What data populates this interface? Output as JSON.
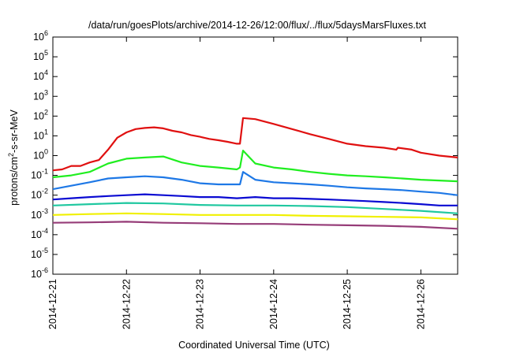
{
  "chart_data": {
    "type": "line",
    "title": "/data/run/goesPlots/archive/2014-12-26/12:00/flux/../flux/5daysMarsFluxes.txt",
    "xlabel": "Coordinated Universal Time (UTC)",
    "ylabel": "protons/cm²-s-sr-MeV",
    "ylabel_parts": {
      "pre": "protons/cm",
      "sup": "2",
      "post": "-s-sr-MeV"
    },
    "y_scale": "log",
    "ylim": [
      1e-06,
      1000000.0
    ],
    "y_ticks": [
      {
        "value": 1e-06,
        "base": "10",
        "exp": "-6"
      },
      {
        "value": 1e-05,
        "base": "10",
        "exp": "-5"
      },
      {
        "value": 0.0001,
        "base": "10",
        "exp": "-4"
      },
      {
        "value": 0.001,
        "base": "10",
        "exp": "-3"
      },
      {
        "value": 0.01,
        "base": "10",
        "exp": "-2"
      },
      {
        "value": 0.1,
        "base": "10",
        "exp": "-1"
      },
      {
        "value": 1,
        "base": "10",
        "exp": "0"
      },
      {
        "value": 10.0,
        "base": "10",
        "exp": "1"
      },
      {
        "value": 100.0,
        "base": "10",
        "exp": "2"
      },
      {
        "value": 1000.0,
        "base": "10",
        "exp": "3"
      },
      {
        "value": 10000.0,
        "base": "10",
        "exp": "4"
      },
      {
        "value": 100000.0,
        "base": "10",
        "exp": "5"
      },
      {
        "value": 1000000.0,
        "base": "10",
        "exp": "6"
      }
    ],
    "xlim": [
      "2014-12-21",
      "2014-12-26T12:00"
    ],
    "x_ticks": [
      "2014-12-21",
      "2014-12-22",
      "2014-12-23",
      "2014-12-24",
      "2014-12-25",
      "2014-12-26"
    ],
    "grid": false,
    "legend": "none",
    "series": [
      {
        "color": "#e01010",
        "points": [
          [
            "2014-12-21T00:00",
            0.18
          ],
          [
            "2014-12-21T03:00",
            0.2
          ],
          [
            "2014-12-21T06:00",
            0.3
          ],
          [
            "2014-12-21T09:00",
            0.3
          ],
          [
            "2014-12-21T12:00",
            0.45
          ],
          [
            "2014-12-21T15:00",
            0.6
          ],
          [
            "2014-12-21T18:00",
            2.0
          ],
          [
            "2014-12-21T21:00",
            8
          ],
          [
            "2014-12-22T00:00",
            15
          ],
          [
            "2014-12-22T03:00",
            22
          ],
          [
            "2014-12-22T06:00",
            25
          ],
          [
            "2014-12-22T09:00",
            27
          ],
          [
            "2014-12-22T12:00",
            24
          ],
          [
            "2014-12-22T15:00",
            18
          ],
          [
            "2014-12-22T18:00",
            15
          ],
          [
            "2014-12-22T21:00",
            11
          ],
          [
            "2014-12-23T00:00",
            9
          ],
          [
            "2014-12-23T03:00",
            7
          ],
          [
            "2014-12-23T06:00",
            6
          ],
          [
            "2014-12-23T09:00",
            5
          ],
          [
            "2014-12-23T12:00",
            4
          ],
          [
            "2014-12-23T13:00",
            4
          ],
          [
            "2014-12-23T14:00",
            80
          ],
          [
            "2014-12-23T18:00",
            70
          ],
          [
            "2014-12-24T00:00",
            40
          ],
          [
            "2014-12-24T06:00",
            22
          ],
          [
            "2014-12-24T12:00",
            12
          ],
          [
            "2014-12-24T18:00",
            7
          ],
          [
            "2014-12-25T00:00",
            4
          ],
          [
            "2014-12-25T06:00",
            3
          ],
          [
            "2014-12-25T12:00",
            2.5
          ],
          [
            "2014-12-25T16:00",
            2
          ],
          [
            "2014-12-25T16:30",
            2.5
          ],
          [
            "2014-12-25T21:00",
            2
          ],
          [
            "2014-12-26T00:00",
            1.4
          ],
          [
            "2014-12-26T06:00",
            1.0
          ],
          [
            "2014-12-26T12:00",
            0.8
          ]
        ]
      },
      {
        "color": "#20ee20",
        "points": [
          [
            "2014-12-21T00:00",
            0.08
          ],
          [
            "2014-12-21T06:00",
            0.1
          ],
          [
            "2014-12-21T12:00",
            0.15
          ],
          [
            "2014-12-21T18:00",
            0.4
          ],
          [
            "2014-12-22T00:00",
            0.7
          ],
          [
            "2014-12-22T06:00",
            0.8
          ],
          [
            "2014-12-22T12:00",
            0.9
          ],
          [
            "2014-12-22T18:00",
            0.45
          ],
          [
            "2014-12-23T00:00",
            0.3
          ],
          [
            "2014-12-23T06:00",
            0.25
          ],
          [
            "2014-12-23T12:00",
            0.2
          ],
          [
            "2014-12-23T13:00",
            0.25
          ],
          [
            "2014-12-23T14:00",
            1.8
          ],
          [
            "2014-12-23T18:00",
            0.4
          ],
          [
            "2014-12-24T00:00",
            0.25
          ],
          [
            "2014-12-24T06:00",
            0.2
          ],
          [
            "2014-12-24T12:00",
            0.15
          ],
          [
            "2014-12-24T18:00",
            0.12
          ],
          [
            "2014-12-25T00:00",
            0.1
          ],
          [
            "2014-12-25T06:00",
            0.09
          ],
          [
            "2014-12-25T12:00",
            0.08
          ],
          [
            "2014-12-25T18:00",
            0.07
          ],
          [
            "2014-12-26T00:00",
            0.06
          ],
          [
            "2014-12-26T06:00",
            0.055
          ],
          [
            "2014-12-26T12:00",
            0.05
          ]
        ]
      },
      {
        "color": "#1e78e6",
        "points": [
          [
            "2014-12-21T00:00",
            0.02
          ],
          [
            "2014-12-21T06:00",
            0.03
          ],
          [
            "2014-12-21T12:00",
            0.045
          ],
          [
            "2014-12-21T18:00",
            0.07
          ],
          [
            "2014-12-22T00:00",
            0.08
          ],
          [
            "2014-12-22T06:00",
            0.09
          ],
          [
            "2014-12-22T12:00",
            0.08
          ],
          [
            "2014-12-22T18:00",
            0.06
          ],
          [
            "2014-12-23T00:00",
            0.04
          ],
          [
            "2014-12-23T06:00",
            0.035
          ],
          [
            "2014-12-23T12:00",
            0.035
          ],
          [
            "2014-12-23T13:00",
            0.035
          ],
          [
            "2014-12-23T14:00",
            0.15
          ],
          [
            "2014-12-23T18:00",
            0.06
          ],
          [
            "2014-12-24T00:00",
            0.045
          ],
          [
            "2014-12-24T06:00",
            0.04
          ],
          [
            "2014-12-24T12:00",
            0.035
          ],
          [
            "2014-12-24T18:00",
            0.03
          ],
          [
            "2014-12-25T00:00",
            0.025
          ],
          [
            "2014-12-25T06:00",
            0.022
          ],
          [
            "2014-12-25T12:00",
            0.02
          ],
          [
            "2014-12-25T18:00",
            0.018
          ],
          [
            "2014-12-26T00:00",
            0.015
          ],
          [
            "2014-12-26T06:00",
            0.013
          ],
          [
            "2014-12-26T12:00",
            0.01
          ]
        ]
      },
      {
        "color": "#0a0ad2",
        "points": [
          [
            "2014-12-21T00:00",
            0.006
          ],
          [
            "2014-12-21T06:00",
            0.007
          ],
          [
            "2014-12-21T12:00",
            0.008
          ],
          [
            "2014-12-21T18:00",
            0.009
          ],
          [
            "2014-12-22T00:00",
            0.01
          ],
          [
            "2014-12-22T06:00",
            0.011
          ],
          [
            "2014-12-22T12:00",
            0.01
          ],
          [
            "2014-12-22T18:00",
            0.009
          ],
          [
            "2014-12-23T00:00",
            0.008
          ],
          [
            "2014-12-23T06:00",
            0.008
          ],
          [
            "2014-12-23T12:00",
            0.007
          ],
          [
            "2014-12-23T18:00",
            0.008
          ],
          [
            "2014-12-24T00:00",
            0.007
          ],
          [
            "2014-12-24T06:00",
            0.007
          ],
          [
            "2014-12-24T12:00",
            0.0065
          ],
          [
            "2014-12-24T18:00",
            0.006
          ],
          [
            "2014-12-25T00:00",
            0.0055
          ],
          [
            "2014-12-25T06:00",
            0.005
          ],
          [
            "2014-12-25T12:00",
            0.0045
          ],
          [
            "2014-12-25T18:00",
            0.004
          ],
          [
            "2014-12-26T00:00",
            0.0035
          ],
          [
            "2014-12-26T06:00",
            0.003
          ],
          [
            "2014-12-26T12:00",
            0.003
          ]
        ]
      },
      {
        "color": "#20c8a0",
        "points": [
          [
            "2014-12-21T00:00",
            0.003
          ],
          [
            "2014-12-21T12:00",
            0.0035
          ],
          [
            "2014-12-22T00:00",
            0.004
          ],
          [
            "2014-12-22T12:00",
            0.0038
          ],
          [
            "2014-12-23T00:00",
            0.0032
          ],
          [
            "2014-12-23T12:00",
            0.003
          ],
          [
            "2014-12-24T00:00",
            0.003
          ],
          [
            "2014-12-24T12:00",
            0.0028
          ],
          [
            "2014-12-25T00:00",
            0.0025
          ],
          [
            "2014-12-25T12:00",
            0.002
          ],
          [
            "2014-12-26T00:00",
            0.0016
          ],
          [
            "2014-12-26T12:00",
            0.0012
          ]
        ]
      },
      {
        "color": "#f0f000",
        "points": [
          [
            "2014-12-21T00:00",
            0.001
          ],
          [
            "2014-12-21T12:00",
            0.0011
          ],
          [
            "2014-12-22T00:00",
            0.0012
          ],
          [
            "2014-12-22T12:00",
            0.0011
          ],
          [
            "2014-12-23T00:00",
            0.001
          ],
          [
            "2014-12-23T12:00",
            0.001
          ],
          [
            "2014-12-24T00:00",
            0.001
          ],
          [
            "2014-12-24T12:00",
            0.0009
          ],
          [
            "2014-12-25T00:00",
            0.00085
          ],
          [
            "2014-12-25T12:00",
            0.0008
          ],
          [
            "2014-12-26T00:00",
            0.00075
          ],
          [
            "2014-12-26T12:00",
            0.0006
          ]
        ]
      },
      {
        "color": "#963c78",
        "points": [
          [
            "2014-12-21T00:00",
            0.0004
          ],
          [
            "2014-12-21T12:00",
            0.00042
          ],
          [
            "2014-12-22T00:00",
            0.00045
          ],
          [
            "2014-12-22T12:00",
            0.0004
          ],
          [
            "2014-12-23T00:00",
            0.00038
          ],
          [
            "2014-12-23T12:00",
            0.00035
          ],
          [
            "2014-12-24T00:00",
            0.00035
          ],
          [
            "2014-12-24T12:00",
            0.00032
          ],
          [
            "2014-12-25T00:00",
            0.0003
          ],
          [
            "2014-12-25T12:00",
            0.00028
          ],
          [
            "2014-12-26T00:00",
            0.00025
          ],
          [
            "2014-12-26T12:00",
            0.0002
          ]
        ]
      }
    ]
  }
}
